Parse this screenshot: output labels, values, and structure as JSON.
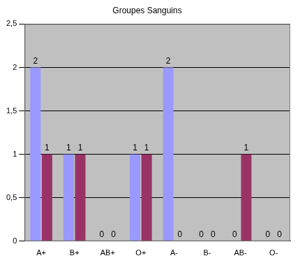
{
  "chart_data": {
    "type": "bar",
    "title": "Groupes Sanguins",
    "categories": [
      "A+",
      "B+",
      "AB+",
      "O+",
      "A-",
      "B-",
      "AB-",
      "O-"
    ],
    "series": [
      {
        "color": "#9999ff",
        "values": [
          2,
          1,
          0,
          1,
          2,
          0,
          0,
          0
        ]
      },
      {
        "color": "#993366",
        "values": [
          1,
          1,
          0,
          1,
          0,
          0,
          1,
          0
        ]
      }
    ],
    "ylim": [
      0,
      2.5
    ],
    "yticks": [
      0,
      {
        "value": 0.5,
        "label": "0,5"
      },
      1,
      {
        "value": 1.5,
        "label": "1,5"
      },
      2,
      {
        "value": 2.5,
        "label": "2,5"
      }
    ],
    "grid": true,
    "data_labels": true
  }
}
